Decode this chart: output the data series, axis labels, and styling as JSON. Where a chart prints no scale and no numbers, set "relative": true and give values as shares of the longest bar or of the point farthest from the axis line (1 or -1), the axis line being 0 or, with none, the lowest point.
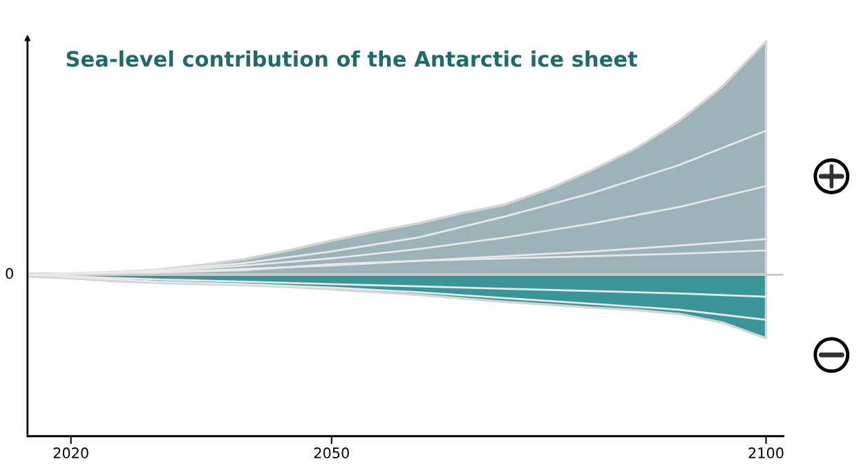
{
  "chart_data": {
    "type": "area",
    "title": "Sea-level contribution of the Antarctic ice sheet",
    "relative": true,
    "x": [
      2015,
      2020,
      2025,
      2030,
      2035,
      2040,
      2045,
      2050,
      2055,
      2060,
      2065,
      2070,
      2075,
      2080,
      2085,
      2090,
      2095,
      2100
    ],
    "xlim": [
      2015,
      2102
    ],
    "xticks": [
      2020,
      2050,
      2100
    ],
    "grid": false,
    "ref_lines": [
      {
        "axis": "y",
        "value": 0,
        "label": "0",
        "color": "#c8c8c8"
      }
    ],
    "series": [
      {
        "color": "#9db3ba",
        "values": [
          0.005,
          0.005,
          0.012,
          0.022,
          0.042,
          0.067,
          0.104,
          0.146,
          0.185,
          0.22,
          0.264,
          0.301,
          0.368,
          0.449,
          0.541,
          0.659,
          0.807,
          1
        ]
      },
      {
        "color": "#3a9598",
        "values": [
          -0.007,
          -0.015,
          -0.027,
          -0.035,
          -0.04,
          -0.044,
          -0.052,
          -0.062,
          -0.074,
          -0.086,
          -0.101,
          -0.116,
          -0.128,
          -0.141,
          -0.151,
          -0.168,
          -0.205,
          -0.272
        ]
      },
      {
        "type": "line",
        "color": "#e8e8e8",
        "x": [
          2015,
          2030,
          2040,
          2050,
          2060,
          2070,
          2080,
          2090,
          2100
        ],
        "values": [
          0,
          0.02,
          0.05,
          0.1,
          0.16,
          0.25,
          0.35,
          0.47,
          0.617
        ]
      },
      {
        "type": "line",
        "color": "#e8e8e8",
        "x": [
          2015,
          2030,
          2040,
          2050,
          2060,
          2070,
          2080,
          2090,
          2100
        ],
        "values": [
          0,
          0.015,
          0.04,
          0.07,
          0.11,
          0.16,
          0.22,
          0.29,
          0.38
        ]
      },
      {
        "type": "line",
        "color": "#e8e8e8",
        "x": [
          2015,
          2030,
          2040,
          2050,
          2060,
          2070,
          2080,
          2090,
          2100
        ],
        "values": [
          0,
          0.01,
          0.025,
          0.04,
          0.06,
          0.08,
          0.1,
          0.125,
          0.153
        ]
      },
      {
        "type": "line",
        "color": "#e8e8e8",
        "x": [
          2015,
          2030,
          2040,
          2050,
          2060,
          2070,
          2080,
          2090,
          2100
        ],
        "values": [
          0,
          0.01,
          0.02,
          0.045,
          0.06,
          0.07,
          0.08,
          0.09,
          0.104
        ]
      },
      {
        "type": "line",
        "color": "#e8e8e8",
        "x": [
          2015,
          2030,
          2040,
          2050,
          2060,
          2070,
          2080,
          2090,
          2100
        ],
        "values": [
          0,
          -0.02,
          -0.03,
          -0.04,
          -0.05,
          -0.06,
          -0.07,
          -0.08,
          -0.094
        ]
      },
      {
        "type": "line",
        "color": "#e8e8e8",
        "x": [
          2015,
          2030,
          2040,
          2050,
          2060,
          2070,
          2080,
          2090,
          2100
        ],
        "values": [
          0,
          -0.03,
          -0.04,
          -0.055,
          -0.075,
          -0.1,
          -0.125,
          -0.15,
          -0.193
        ]
      }
    ]
  }
}
